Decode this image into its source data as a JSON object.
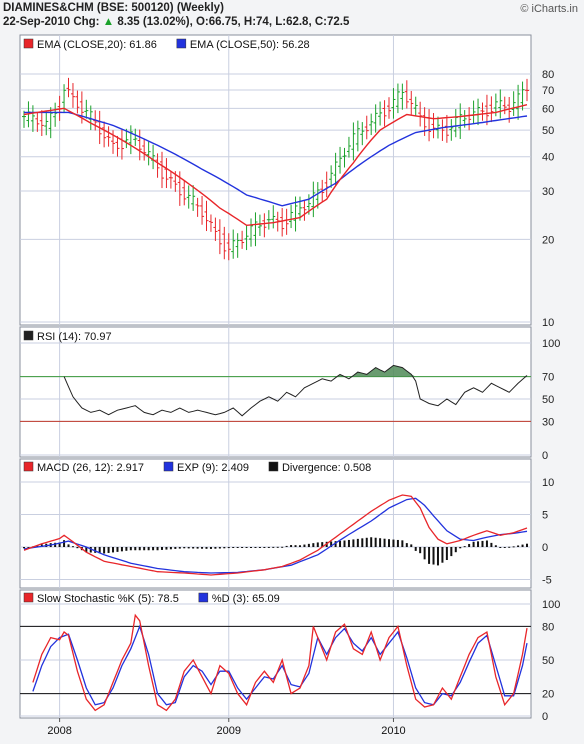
{
  "header": {
    "title": "DIAMINES&CHM (BSE: 500120) (Weekly)",
    "quote_date": "22-Sep-2010 Chg:",
    "quote_change": "8.35 (13.02%)",
    "quote_ohlc": ", O:66.75, H:74, L:62.8, C:72.5",
    "credit": "© iCharts.in"
  },
  "colors": {
    "ema20": "#e8262a",
    "ema50": "#2233dd",
    "bull": "#1aa12a",
    "bear": "#e8262a",
    "rsi_line": "#222222",
    "rsi_fill": "#4f8a57",
    "grid": "#c9cfe0",
    "macd": "#e8262a",
    "exp": "#2233dd",
    "divergence": "#111111",
    "stoch_k": "#e8262a",
    "stoch_d": "#2233dd",
    "panel_bg": "#ffffff"
  },
  "x_axis": {
    "labels": [
      "2008",
      "2009",
      "2010"
    ]
  },
  "chart_data": [
    {
      "type": "candlestick",
      "scale": "log",
      "ylim": [
        10,
        90
      ],
      "yticks": [
        10,
        20,
        30,
        40,
        50,
        60,
        70,
        80
      ],
      "legend": [
        "EMA (CLOSE,20): 61.86",
        "EMA (CLOSE,50): 56.28"
      ],
      "anchors_close": [
        [
          0,
          56
        ],
        [
          5,
          52
        ],
        [
          8,
          62
        ],
        [
          9,
          72
        ],
        [
          11,
          65
        ],
        [
          14,
          57
        ],
        [
          18,
          48
        ],
        [
          20,
          44
        ],
        [
          24,
          47
        ],
        [
          28,
          40
        ],
        [
          32,
          34
        ],
        [
          36,
          29
        ],
        [
          40,
          25
        ],
        [
          43,
          21
        ],
        [
          46,
          18.5
        ],
        [
          49,
          20
        ],
        [
          52,
          22
        ],
        [
          55,
          24
        ],
        [
          58,
          23
        ],
        [
          61,
          25
        ],
        [
          64,
          27
        ],
        [
          67,
          31
        ],
        [
          70,
          37
        ],
        [
          73,
          44
        ],
        [
          77,
          52
        ],
        [
          80,
          58
        ],
        [
          83,
          63
        ],
        [
          85,
          68
        ],
        [
          87,
          62
        ],
        [
          89,
          55
        ],
        [
          92,
          51
        ],
        [
          95,
          50
        ],
        [
          98,
          54
        ],
        [
          101,
          58
        ],
        [
          103,
          59
        ],
        [
          106,
          62
        ],
        [
          109,
          60
        ],
        [
          111,
          64
        ],
        [
          113,
          72.5
        ]
      ],
      "ema20_anchors": [
        [
          0,
          57
        ],
        [
          9,
          60
        ],
        [
          15,
          53
        ],
        [
          22,
          46
        ],
        [
          30,
          38
        ],
        [
          38,
          31
        ],
        [
          44,
          26
        ],
        [
          50,
          22.5
        ],
        [
          56,
          23
        ],
        [
          62,
          24
        ],
        [
          68,
          28
        ],
        [
          74,
          38
        ],
        [
          80,
          50
        ],
        [
          86,
          57
        ],
        [
          92,
          55
        ],
        [
          98,
          56
        ],
        [
          106,
          58
        ],
        [
          113,
          61.86
        ]
      ],
      "ema50_anchors": [
        [
          0,
          58
        ],
        [
          10,
          58
        ],
        [
          20,
          52
        ],
        [
          30,
          44
        ],
        [
          40,
          36
        ],
        [
          50,
          29
        ],
        [
          58,
          26.5
        ],
        [
          64,
          28
        ],
        [
          70,
          32
        ],
        [
          76,
          38
        ],
        [
          82,
          44
        ],
        [
          88,
          49
        ],
        [
          94,
          51
        ],
        [
          102,
          53
        ],
        [
          113,
          56.28
        ]
      ]
    },
    {
      "type": "line",
      "label": "RSI (14): 70.97",
      "ylim": [
        0,
        100
      ],
      "yticks": [
        0,
        30,
        50,
        70,
        100
      ],
      "levels": [
        30,
        70
      ],
      "anchors": [
        [
          9,
          70
        ],
        [
          11,
          52
        ],
        [
          13,
          42
        ],
        [
          15,
          38
        ],
        [
          17,
          40
        ],
        [
          19,
          36
        ],
        [
          21,
          40
        ],
        [
          23,
          42
        ],
        [
          25,
          44
        ],
        [
          27,
          38
        ],
        [
          29,
          36
        ],
        [
          31,
          40
        ],
        [
          33,
          38
        ],
        [
          35,
          42
        ],
        [
          37,
          38
        ],
        [
          39,
          40
        ],
        [
          41,
          38
        ],
        [
          43,
          36
        ],
        [
          45,
          38
        ],
        [
          47,
          42
        ],
        [
          49,
          35
        ],
        [
          51,
          42
        ],
        [
          53,
          48
        ],
        [
          55,
          52
        ],
        [
          57,
          48
        ],
        [
          59,
          56
        ],
        [
          61,
          52
        ],
        [
          63,
          60
        ],
        [
          65,
          64
        ],
        [
          67,
          68
        ],
        [
          69,
          66
        ],
        [
          71,
          72
        ],
        [
          73,
          68
        ],
        [
          75,
          74
        ],
        [
          77,
          72
        ],
        [
          79,
          78
        ],
        [
          81,
          74
        ],
        [
          83,
          80
        ],
        [
          85,
          78
        ],
        [
          87,
          72
        ],
        [
          88,
          66
        ],
        [
          89,
          50
        ],
        [
          91,
          46
        ],
        [
          93,
          44
        ],
        [
          95,
          50
        ],
        [
          97,
          45
        ],
        [
          99,
          56
        ],
        [
          101,
          60
        ],
        [
          103,
          56
        ],
        [
          105,
          64
        ],
        [
          107,
          60
        ],
        [
          109,
          56
        ],
        [
          111,
          64
        ],
        [
          113,
          70.97
        ]
      ]
    },
    {
      "type": "line",
      "label": "MACD (26, 12): 2.917",
      "ylim": [
        -6,
        12
      ],
      "yticks": [
        -5,
        0,
        5,
        10
      ],
      "series": [
        {
          "name": "MACD (26, 12): 2.917",
          "anchors": [
            [
              0,
              -0.5
            ],
            [
              4,
              0.5
            ],
            [
              8,
              1.3
            ],
            [
              9,
              1.8
            ],
            [
              11,
              0.8
            ],
            [
              14,
              -0.8
            ],
            [
              18,
              -2.2
            ],
            [
              24,
              -3.0
            ],
            [
              30,
              -3.8
            ],
            [
              36,
              -4.0
            ],
            [
              42,
              -4.3
            ],
            [
              48,
              -4.0
            ],
            [
              54,
              -3.5
            ],
            [
              58,
              -3.0
            ],
            [
              62,
              -2.0
            ],
            [
              66,
              -0.5
            ],
            [
              70,
              1.5
            ],
            [
              74,
              3.5
            ],
            [
              78,
              5.5
            ],
            [
              82,
              7.2
            ],
            [
              85,
              8.0
            ],
            [
              87,
              7.8
            ],
            [
              89,
              6.0
            ],
            [
              91,
              3.0
            ],
            [
              93,
              1.2
            ],
            [
              95,
              0.5
            ],
            [
              98,
              1.0
            ],
            [
              101,
              1.8
            ],
            [
              104,
              2.5
            ],
            [
              107,
              1.8
            ],
            [
              110,
              2.2
            ],
            [
              113,
              2.917
            ]
          ]
        },
        {
          "name": "EXP (9): 2.409",
          "anchors": [
            [
              0,
              -0.3
            ],
            [
              6,
              0.3
            ],
            [
              10,
              0.9
            ],
            [
              14,
              0.0
            ],
            [
              18,
              -1.2
            ],
            [
              24,
              -2.5
            ],
            [
              30,
              -3.3
            ],
            [
              36,
              -3.8
            ],
            [
              42,
              -4.0
            ],
            [
              48,
              -3.9
            ],
            [
              54,
              -3.5
            ],
            [
              60,
              -2.8
            ],
            [
              66,
              -1.2
            ],
            [
              72,
              1.5
            ],
            [
              78,
              4.0
            ],
            [
              82,
              6.0
            ],
            [
              86,
              7.3
            ],
            [
              88,
              7.5
            ],
            [
              90,
              6.4
            ],
            [
              92,
              4.8
            ],
            [
              95,
              2.5
            ],
            [
              98,
              1.2
            ],
            [
              101,
              1.0
            ],
            [
              104,
              1.5
            ],
            [
              107,
              1.9
            ],
            [
              110,
              2.1
            ],
            [
              113,
              2.409
            ]
          ]
        },
        {
          "name": "Divergence: 0.508"
        }
      ]
    },
    {
      "type": "line",
      "label": "Slow Stochastic",
      "ylim": [
        0,
        100
      ],
      "yticks": [
        0,
        20,
        50,
        80,
        100
      ],
      "levels": [
        20,
        80
      ],
      "series": [
        {
          "name": "Slow Stochastic %K (5): 78.5",
          "anchors": [
            [
              2,
              30
            ],
            [
              4,
              55
            ],
            [
              6,
              70
            ],
            [
              8,
              68
            ],
            [
              9,
              75
            ],
            [
              10,
              72
            ],
            [
              12,
              40
            ],
            [
              14,
              15
            ],
            [
              16,
              5
            ],
            [
              18,
              10
            ],
            [
              20,
              30
            ],
            [
              22,
              50
            ],
            [
              24,
              65
            ],
            [
              25,
              90
            ],
            [
              26,
              85
            ],
            [
              28,
              45
            ],
            [
              30,
              10
            ],
            [
              32,
              5
            ],
            [
              34,
              15
            ],
            [
              36,
              40
            ],
            [
              38,
              50
            ],
            [
              40,
              35
            ],
            [
              42,
              20
            ],
            [
              44,
              45
            ],
            [
              46,
              38
            ],
            [
              48,
              20
            ],
            [
              50,
              10
            ],
            [
              52,
              30
            ],
            [
              54,
              40
            ],
            [
              56,
              30
            ],
            [
              58,
              50
            ],
            [
              60,
              20
            ],
            [
              62,
              25
            ],
            [
              64,
              45
            ],
            [
              65,
              80
            ],
            [
              66,
              70
            ],
            [
              68,
              50
            ],
            [
              70,
              75
            ],
            [
              72,
              82
            ],
            [
              74,
              60
            ],
            [
              76,
              55
            ],
            [
              78,
              75
            ],
            [
              80,
              50
            ],
            [
              82,
              70
            ],
            [
              84,
              80
            ],
            [
              86,
              45
            ],
            [
              88,
              15
            ],
            [
              90,
              8
            ],
            [
              92,
              10
            ],
            [
              94,
              25
            ],
            [
              96,
              15
            ],
            [
              98,
              35
            ],
            [
              100,
              55
            ],
            [
              102,
              70
            ],
            [
              104,
              75
            ],
            [
              106,
              35
            ],
            [
              108,
              10
            ],
            [
              110,
              20
            ],
            [
              112,
              55
            ],
            [
              113,
              78.5
            ]
          ]
        },
        {
          "name": "%D (3): 65.09",
          "anchors": [
            [
              2,
              22
            ],
            [
              4,
              45
            ],
            [
              6,
              62
            ],
            [
              8,
              70
            ],
            [
              10,
              73
            ],
            [
              12,
              50
            ],
            [
              14,
              25
            ],
            [
              16,
              10
            ],
            [
              18,
              12
            ],
            [
              20,
              25
            ],
            [
              22,
              45
            ],
            [
              24,
              60
            ],
            [
              26,
              80
            ],
            [
              28,
              55
            ],
            [
              30,
              20
            ],
            [
              32,
              10
            ],
            [
              34,
              12
            ],
            [
              36,
              35
            ],
            [
              38,
              45
            ],
            [
              40,
              40
            ],
            [
              42,
              28
            ],
            [
              44,
              40
            ],
            [
              46,
              40
            ],
            [
              48,
              25
            ],
            [
              50,
              15
            ],
            [
              52,
              25
            ],
            [
              54,
              35
            ],
            [
              56,
              33
            ],
            [
              58,
              45
            ],
            [
              60,
              28
            ],
            [
              62,
              26
            ],
            [
              64,
              38
            ],
            [
              66,
              70
            ],
            [
              68,
              55
            ],
            [
              70,
              70
            ],
            [
              72,
              78
            ],
            [
              74,
              65
            ],
            [
              76,
              58
            ],
            [
              78,
              70
            ],
            [
              80,
              55
            ],
            [
              82,
              65
            ],
            [
              84,
              75
            ],
            [
              86,
              52
            ],
            [
              88,
              25
            ],
            [
              90,
              12
            ],
            [
              92,
              10
            ],
            [
              94,
              20
            ],
            [
              96,
              18
            ],
            [
              98,
              30
            ],
            [
              100,
              48
            ],
            [
              102,
              65
            ],
            [
              104,
              72
            ],
            [
              106,
              45
            ],
            [
              108,
              18
            ],
            [
              110,
              18
            ],
            [
              112,
              45
            ],
            [
              113,
              65.09
            ]
          ]
        }
      ]
    }
  ]
}
